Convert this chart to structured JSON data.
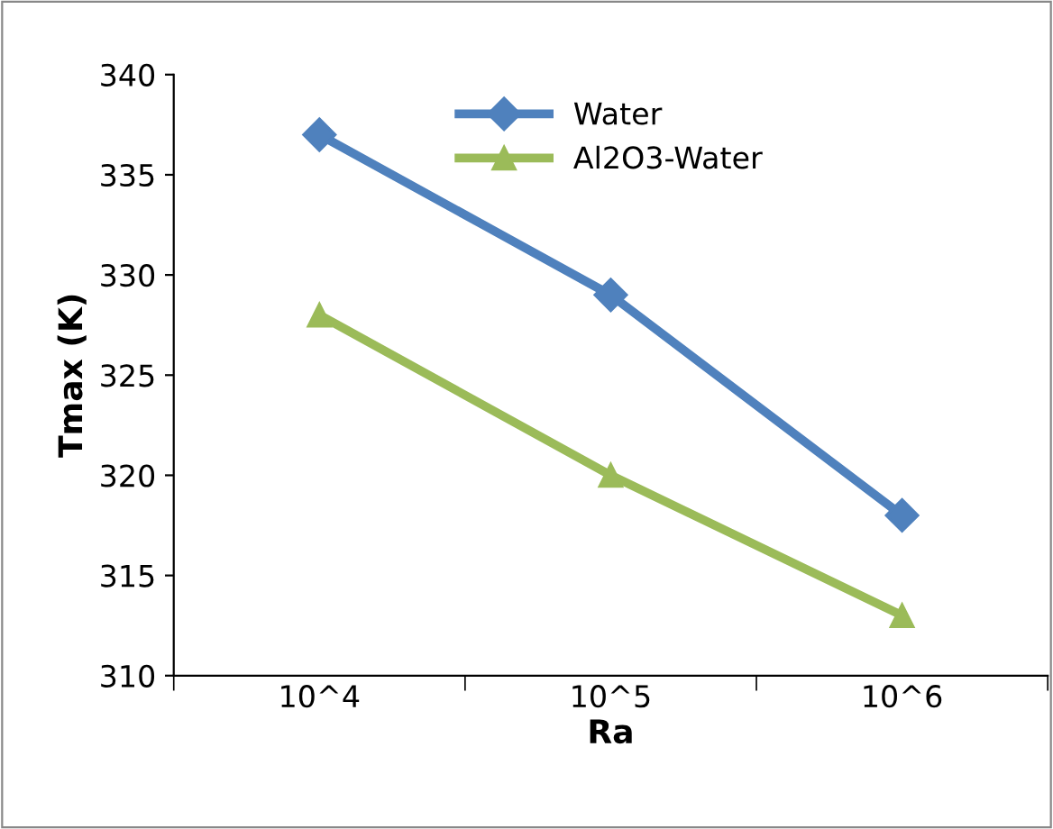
{
  "chart_data": {
    "type": "line",
    "xlabel": "Ra",
    "ylabel": "Tmax (K)",
    "categories": [
      "10^4",
      "10^5",
      "10^6"
    ],
    "series": [
      {
        "name": "Water",
        "color": "#4f81bd",
        "marker": "diamond",
        "values": [
          337,
          329,
          318
        ]
      },
      {
        "name": "Al2O3-Water",
        "color": "#9bbb59",
        "marker": "triangle",
        "values": [
          328,
          320,
          313
        ]
      }
    ],
    "ylim": [
      310,
      340
    ],
    "yticks": [
      310,
      315,
      320,
      325,
      330,
      335,
      340
    ],
    "grid": false,
    "legend": "top",
    "line_style": "solid"
  }
}
